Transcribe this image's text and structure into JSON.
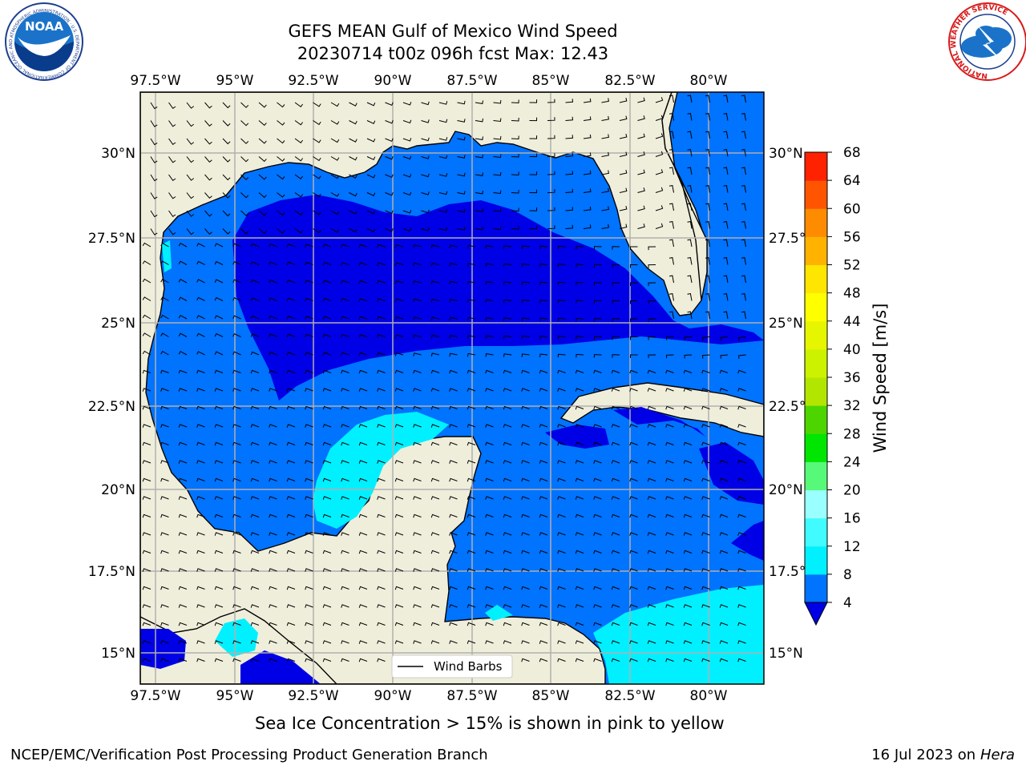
{
  "title": {
    "line1": "GEFS MEAN Gulf of Mexico Wind Speed",
    "line2": "20230714 t00z 096h fcst   Max: 12.43"
  },
  "map": {
    "lon_labels": [
      "97.5°W",
      "95°W",
      "92.5°W",
      "90°W",
      "87.5°W",
      "85°W",
      "82.5°W",
      "80°W"
    ],
    "lat_labels": [
      "30°N",
      "27.5°N",
      "25°N",
      "22.5°N",
      "20°N",
      "17.5°N",
      "15°N"
    ],
    "legend_label": "Wind Barbs",
    "land_color": "#efeedb",
    "gridline_color": "#b0b0b0"
  },
  "colorbar": {
    "label": "Wind Speed [m/s]",
    "ticks": [
      "4",
      "8",
      "12",
      "16",
      "20",
      "24",
      "28",
      "32",
      "36",
      "40",
      "44",
      "48",
      "52",
      "56",
      "60",
      "64",
      "68"
    ],
    "colors": [
      "#0073ff",
      "#00f0ff",
      "#40fbff",
      "#99ffff",
      "#57f979",
      "#00e600",
      "#4dd500",
      "#b2e600",
      "#ccf200",
      "#e6f500",
      "#ffff00",
      "#ffe600",
      "#ffb300",
      "#ff8c00",
      "#ff5500",
      "#ff2200"
    ],
    "under_color": "#0000e6"
  },
  "notes": {
    "sea_ice": "Sea Ice Concentration > 15% is shown in pink to yellow"
  },
  "footer": {
    "left": "NCEP/EMC/Verification Post Processing Product Generation Branch",
    "right_prefix": "16 Jul 2023 on ",
    "right_host": "Hera"
  },
  "logos": {
    "noaa_text": "NOAA",
    "noaa_ring": "NATIONAL OCEANIC AND ATMOSPHERIC ADMINISTRATION · U.S. DEPARTMENT OF COMMERCE ·",
    "nws_ring": "NATIONAL WEATHER SERVICE"
  }
}
